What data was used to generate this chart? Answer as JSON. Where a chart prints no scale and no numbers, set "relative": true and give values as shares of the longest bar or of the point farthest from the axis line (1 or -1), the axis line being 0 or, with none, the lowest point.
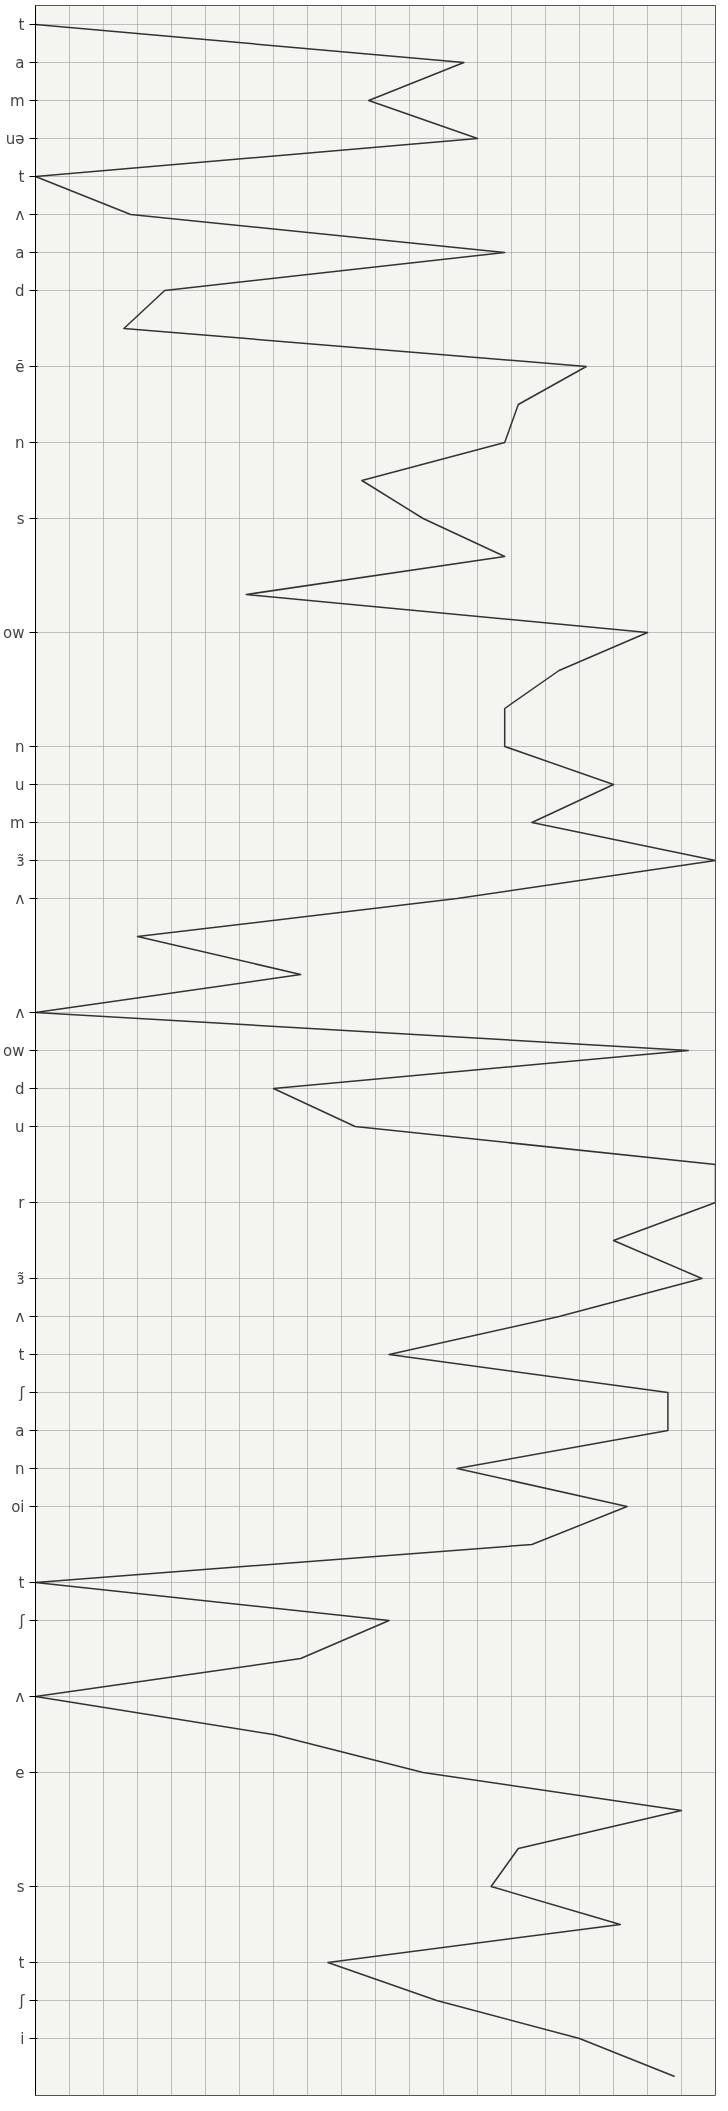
{
  "chart_data": {
    "type": "line",
    "orientation": "horizontal",
    "relative": true,
    "color": "#333333",
    "grid": true,
    "categories": [
      "t",
      "a",
      "m",
      "uə",
      "t",
      "ʌ",
      "a",
      "d",
      null,
      "ẽ",
      null,
      "n",
      null,
      "s",
      null,
      null,
      "ow",
      null,
      null,
      "n",
      "u",
      "m",
      "ɜ̃",
      "ʌ",
      null,
      null,
      "ʌ",
      "ow",
      "d",
      "u",
      null,
      "r",
      null,
      "ɜ̃",
      "ʌ",
      "t",
      "ʃ",
      "a",
      "n",
      "oi",
      null,
      "t",
      "ʃ",
      null,
      "ʌ",
      null,
      "e",
      null,
      null,
      "s",
      null,
      "t",
      "ʃ",
      "i",
      null
    ],
    "values": [
      0.0,
      0.63,
      0.49,
      0.65,
      0.0,
      0.14,
      0.69,
      0.19,
      0.13,
      0.81,
      0.71,
      0.69,
      0.48,
      0.57,
      0.69,
      0.31,
      0.9,
      0.77,
      0.69,
      0.69,
      0.85,
      0.73,
      1.0,
      0.62,
      0.15,
      0.39,
      0.0,
      0.96,
      0.35,
      0.47,
      1.0,
      1.0,
      0.85,
      0.98,
      0.77,
      0.52,
      0.93,
      0.93,
      0.62,
      0.87,
      0.73,
      0.0,
      0.52,
      0.39,
      0.0,
      0.35,
      0.57,
      0.95,
      0.71,
      0.67,
      0.86,
      0.43,
      0.59,
      0.8,
      0.94
    ]
  }
}
